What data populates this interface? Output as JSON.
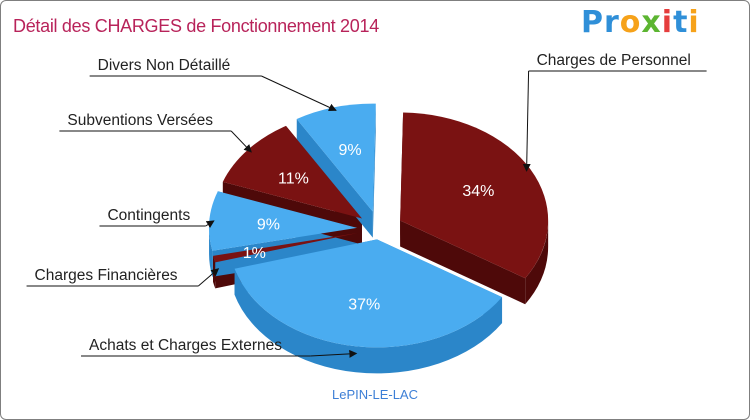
{
  "header": {
    "title": "Détail des CHARGES de Fonctionnement 2014",
    "logo": "Proxiti"
  },
  "footer": {
    "caption": "LePIN-LE-LAC"
  },
  "colors": {
    "dark_red": "#7a1212",
    "blue": "#4aacf0",
    "title": "#b8235a",
    "caption": "#3d7fd6"
  },
  "chart_data": {
    "type": "pie",
    "title": "Détail des CHARGES de Fonctionnement 2014",
    "subtitle": "LePIN-LE-LAC",
    "unit": "%",
    "slices": [
      {
        "label": "Charges de Personnel",
        "value": 34,
        "display": "34%",
        "color": "dark_red"
      },
      {
        "label": "Achats et Charges Externes",
        "value": 37,
        "display": "37%",
        "color": "blue"
      },
      {
        "label": "Charges Financières",
        "value": 1,
        "display": "1%",
        "color": "dark_red"
      },
      {
        "label": "Contingents",
        "value": 9,
        "display": "9%",
        "color": "blue"
      },
      {
        "label": "Subventions Versées",
        "value": 11,
        "display": "11%",
        "color": "dark_red"
      },
      {
        "label": "Divers Non Détaillé",
        "value": 9,
        "display": "9%",
        "color": "blue"
      }
    ]
  }
}
